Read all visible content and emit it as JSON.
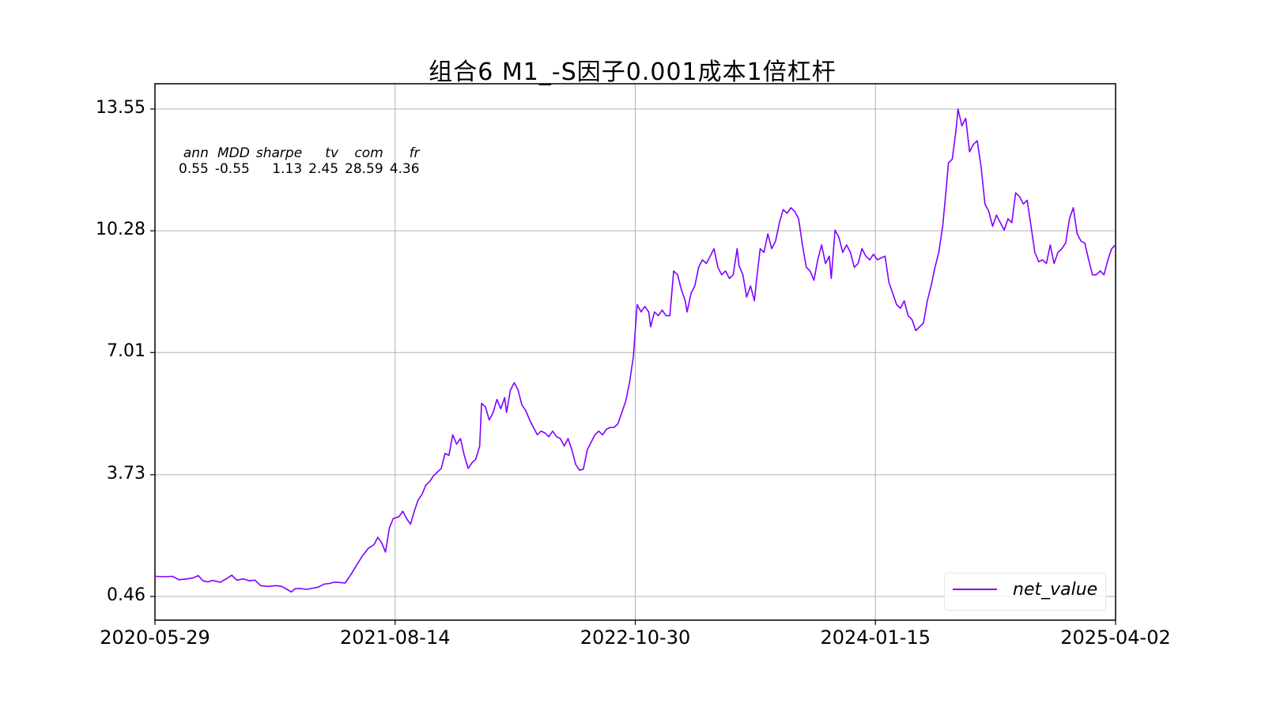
{
  "chart_data": {
    "type": "line",
    "title": "组合6 M1_-S因子0.001成本1倍杠杆",
    "xlabel": "",
    "ylabel": "",
    "x_tick_labels": [
      "2020-05-29",
      "2021-08-14",
      "2022-10-30",
      "2024-01-15",
      "2025-04-02"
    ],
    "y_tick_labels": [
      "13.55",
      "10.28",
      "7.01",
      "3.73",
      "0.46"
    ],
    "y_ticks": [
      13.55,
      10.28,
      7.01,
      3.73,
      0.46
    ],
    "ylim": [
      -0.19,
      14.23
    ],
    "xlim_dates": [
      "2020-05-29",
      "2025-04-02"
    ],
    "grid": true,
    "legend": {
      "position": "lower right",
      "entries": [
        "net_value"
      ]
    },
    "line_color": "#8000ff",
    "stats_table": {
      "headers": [
        "ann",
        "MDD",
        "sharpe",
        "tv",
        "com",
        "fr"
      ],
      "values": [
        "0.55",
        "-0.55",
        "1.13",
        "2.45",
        "28.59",
        "4.36"
      ]
    },
    "series": [
      {
        "name": "net_value",
        "points": [
          [
            0.0,
            1.0
          ],
          [
            0.01,
            0.99
          ],
          [
            0.018,
            1.0
          ],
          [
            0.025,
            0.91
          ],
          [
            0.033,
            0.93
          ],
          [
            0.04,
            0.96
          ],
          [
            0.045,
            1.02
          ],
          [
            0.05,
            0.88
          ],
          [
            0.055,
            0.85
          ],
          [
            0.06,
            0.89
          ],
          [
            0.068,
            0.84
          ],
          [
            0.074,
            0.93
          ],
          [
            0.08,
            1.03
          ],
          [
            0.085,
            0.9
          ],
          [
            0.092,
            0.93
          ],
          [
            0.098,
            0.88
          ],
          [
            0.104,
            0.9
          ],
          [
            0.11,
            0.75
          ],
          [
            0.118,
            0.73
          ],
          [
            0.126,
            0.75
          ],
          [
            0.132,
            0.73
          ],
          [
            0.138,
            0.64
          ],
          [
            0.142,
            0.58
          ],
          [
            0.146,
            0.67
          ],
          [
            0.152,
            0.67
          ],
          [
            0.158,
            0.65
          ],
          [
            0.164,
            0.68
          ],
          [
            0.17,
            0.71
          ],
          [
            0.176,
            0.79
          ],
          [
            0.182,
            0.81
          ],
          [
            0.186,
            0.84
          ],
          [
            0.19,
            0.84
          ],
          [
            0.194,
            0.83
          ],
          [
            0.198,
            0.82
          ],
          [
            0.204,
            1.05
          ],
          [
            0.21,
            1.3
          ],
          [
            0.216,
            1.55
          ],
          [
            0.222,
            1.75
          ],
          [
            0.228,
            1.85
          ],
          [
            0.232,
            2.05
          ],
          [
            0.236,
            1.9
          ],
          [
            0.24,
            1.65
          ],
          [
            0.244,
            2.3
          ],
          [
            0.248,
            2.55
          ],
          [
            0.254,
            2.6
          ],
          [
            0.258,
            2.75
          ],
          [
            0.262,
            2.55
          ],
          [
            0.266,
            2.4
          ],
          [
            0.27,
            2.75
          ],
          [
            0.274,
            3.05
          ],
          [
            0.278,
            3.2
          ],
          [
            0.282,
            3.45
          ],
          [
            0.286,
            3.55
          ],
          [
            0.29,
            3.7
          ],
          [
            0.294,
            3.8
          ],
          [
            0.298,
            3.9
          ],
          [
            0.302,
            4.3
          ],
          [
            0.306,
            4.25
          ],
          [
            0.31,
            4.8
          ],
          [
            0.314,
            4.55
          ],
          [
            0.318,
            4.7
          ],
          [
            0.322,
            4.25
          ],
          [
            0.326,
            3.9
          ],
          [
            0.33,
            4.05
          ],
          [
            0.334,
            4.15
          ],
          [
            0.338,
            4.5
          ],
          [
            0.34,
            5.65
          ],
          [
            0.344,
            5.55
          ],
          [
            0.348,
            5.2
          ],
          [
            0.352,
            5.4
          ],
          [
            0.356,
            5.75
          ],
          [
            0.36,
            5.5
          ],
          [
            0.364,
            5.8
          ],
          [
            0.366,
            5.4
          ],
          [
            0.37,
            6.0
          ],
          [
            0.374,
            6.2
          ],
          [
            0.378,
            6.0
          ],
          [
            0.382,
            5.6
          ],
          [
            0.386,
            5.45
          ],
          [
            0.39,
            5.2
          ],
          [
            0.394,
            5.0
          ],
          [
            0.398,
            4.8
          ],
          [
            0.402,
            4.9
          ],
          [
            0.406,
            4.85
          ],
          [
            0.41,
            4.75
          ],
          [
            0.414,
            4.9
          ],
          [
            0.418,
            4.75
          ],
          [
            0.422,
            4.7
          ],
          [
            0.426,
            4.5
          ],
          [
            0.43,
            4.7
          ],
          [
            0.434,
            4.4
          ],
          [
            0.438,
            4.0
          ],
          [
            0.442,
            3.85
          ],
          [
            0.446,
            3.88
          ],
          [
            0.45,
            4.4
          ],
          [
            0.454,
            4.6
          ],
          [
            0.458,
            4.8
          ],
          [
            0.462,
            4.9
          ],
          [
            0.466,
            4.8
          ],
          [
            0.47,
            4.95
          ],
          [
            0.474,
            5.0
          ],
          [
            0.478,
            5.0
          ],
          [
            0.482,
            5.1
          ],
          [
            0.486,
            5.4
          ],
          [
            0.49,
            5.7
          ],
          [
            0.494,
            6.2
          ],
          [
            0.498,
            6.9
          ],
          [
            0.502,
            8.3
          ],
          [
            0.506,
            8.1
          ],
          [
            0.51,
            8.25
          ],
          [
            0.514,
            8.1
          ],
          [
            0.516,
            7.7
          ],
          [
            0.52,
            8.1
          ],
          [
            0.524,
            8.0
          ],
          [
            0.528,
            8.15
          ],
          [
            0.532,
            8.0
          ],
          [
            0.536,
            8.0
          ],
          [
            0.54,
            9.2
          ],
          [
            0.544,
            9.1
          ],
          [
            0.548,
            8.7
          ],
          [
            0.552,
            8.4
          ],
          [
            0.554,
            8.1
          ],
          [
            0.558,
            8.6
          ],
          [
            0.562,
            8.8
          ],
          [
            0.566,
            9.3
          ],
          [
            0.57,
            9.5
          ],
          [
            0.574,
            9.4
          ],
          [
            0.578,
            9.6
          ],
          [
            0.582,
            9.8
          ],
          [
            0.586,
            9.3
          ],
          [
            0.59,
            9.1
          ],
          [
            0.594,
            9.2
          ],
          [
            0.598,
            9.0
          ],
          [
            0.602,
            9.1
          ],
          [
            0.606,
            9.8
          ],
          [
            0.608,
            9.35
          ],
          [
            0.612,
            9.1
          ],
          [
            0.616,
            8.5
          ],
          [
            0.62,
            8.8
          ],
          [
            0.624,
            8.4
          ],
          [
            0.626,
            8.9
          ],
          [
            0.63,
            9.8
          ],
          [
            0.634,
            9.7
          ],
          [
            0.638,
            10.2
          ],
          [
            0.642,
            9.8
          ],
          [
            0.646,
            10.0
          ],
          [
            0.65,
            10.5
          ],
          [
            0.654,
            10.85
          ],
          [
            0.658,
            10.75
          ],
          [
            0.662,
            10.9
          ],
          [
            0.666,
            10.8
          ],
          [
            0.67,
            10.6
          ],
          [
            0.674,
            9.9
          ],
          [
            0.678,
            9.3
          ],
          [
            0.682,
            9.2
          ],
          [
            0.686,
            8.95
          ],
          [
            0.69,
            9.5
          ],
          [
            0.694,
            9.9
          ],
          [
            0.698,
            9.4
          ],
          [
            0.702,
            9.6
          ],
          [
            0.704,
            9.0
          ],
          [
            0.708,
            10.3
          ],
          [
            0.712,
            10.1
          ],
          [
            0.716,
            9.7
          ],
          [
            0.72,
            9.9
          ],
          [
            0.724,
            9.7
          ],
          [
            0.728,
            9.3
          ],
          [
            0.732,
            9.4
          ],
          [
            0.736,
            9.8
          ],
          [
            0.74,
            9.6
          ],
          [
            0.744,
            9.5
          ],
          [
            0.748,
            9.65
          ],
          [
            0.752,
            9.5
          ],
          [
            0.756,
            9.55
          ],
          [
            0.76,
            9.6
          ],
          [
            0.764,
            8.9
          ],
          [
            0.768,
            8.6
          ],
          [
            0.772,
            8.3
          ],
          [
            0.776,
            8.2
          ],
          [
            0.78,
            8.4
          ],
          [
            0.784,
            8.0
          ],
          [
            0.788,
            7.9
          ],
          [
            0.792,
            7.6
          ],
          [
            0.796,
            7.7
          ],
          [
            0.8,
            7.8
          ],
          [
            0.804,
            8.4
          ],
          [
            0.808,
            8.8
          ],
          [
            0.812,
            9.3
          ],
          [
            0.816,
            9.7
          ],
          [
            0.82,
            10.4
          ],
          [
            0.824,
            11.5
          ],
          [
            0.826,
            12.1
          ],
          [
            0.83,
            12.2
          ],
          [
            0.834,
            13.0
          ],
          [
            0.836,
            13.55
          ],
          [
            0.84,
            13.1
          ],
          [
            0.844,
            13.3
          ],
          [
            0.848,
            12.4
          ],
          [
            0.852,
            12.6
          ],
          [
            0.856,
            12.7
          ],
          [
            0.86,
            12.0
          ],
          [
            0.864,
            11.0
          ],
          [
            0.868,
            10.8
          ],
          [
            0.872,
            10.4
          ],
          [
            0.876,
            10.7
          ],
          [
            0.88,
            10.5
          ],
          [
            0.884,
            10.3
          ],
          [
            0.888,
            10.6
          ],
          [
            0.892,
            10.5
          ],
          [
            0.896,
            11.3
          ],
          [
            0.9,
            11.2
          ],
          [
            0.904,
            11.0
          ],
          [
            0.908,
            11.1
          ],
          [
            0.912,
            10.4
          ],
          [
            0.916,
            9.7
          ],
          [
            0.92,
            9.45
          ],
          [
            0.924,
            9.5
          ],
          [
            0.928,
            9.4
          ],
          [
            0.932,
            9.9
          ],
          [
            0.936,
            9.4
          ],
          [
            0.94,
            9.7
          ],
          [
            0.944,
            9.8
          ],
          [
            0.948,
            9.95
          ],
          [
            0.952,
            10.6
          ],
          [
            0.956,
            10.9
          ],
          [
            0.96,
            10.2
          ],
          [
            0.964,
            10.0
          ],
          [
            0.968,
            9.95
          ],
          [
            0.972,
            9.5
          ],
          [
            0.976,
            9.1
          ],
          [
            0.98,
            9.1
          ],
          [
            0.984,
            9.2
          ],
          [
            0.988,
            9.1
          ],
          [
            0.992,
            9.5
          ],
          [
            0.996,
            9.8
          ],
          [
            1.0,
            9.9
          ]
        ]
      }
    ]
  },
  "figure": {
    "title": "组合6 M1_-S因子0.001成本1倍杠杆"
  },
  "legend": {
    "label": "net_value"
  }
}
